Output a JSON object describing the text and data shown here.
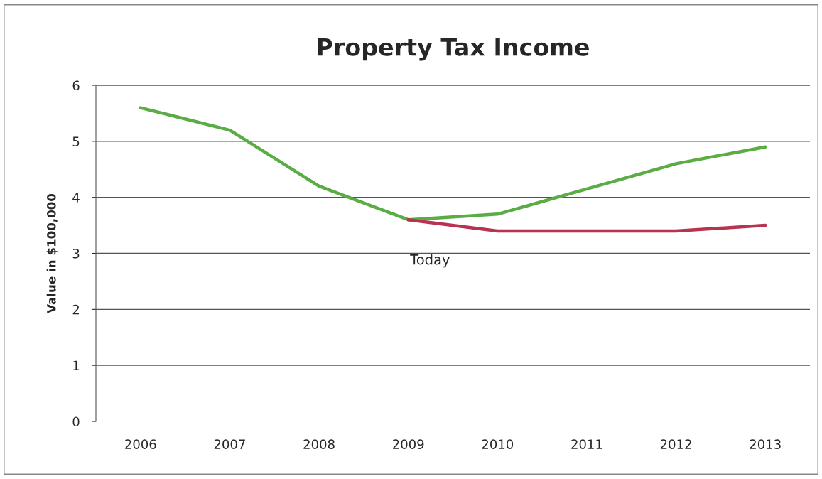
{
  "chart_data": {
    "type": "line",
    "title": "Property Tax Income",
    "ylabel": "Value in $100,000",
    "categories": [
      "2006",
      "2007",
      "2008",
      "2009",
      "2010",
      "2011",
      "2012",
      "2013"
    ],
    "series": [
      {
        "color": "#5aac44",
        "values": [
          5.6,
          5.2,
          4.2,
          3.6,
          3.7,
          4.15,
          4.6,
          4.9
        ]
      },
      {
        "color": "#b8334f",
        "values": [
          null,
          null,
          null,
          3.6,
          3.4,
          3.4,
          3.4,
          3.5
        ]
      }
    ],
    "ylim": [
      0,
      6
    ],
    "yticks": [
      0,
      1,
      2,
      3,
      4,
      5,
      6
    ],
    "grid": "y",
    "legend": false,
    "marker": "none",
    "line_style": "solid",
    "annotations": [
      "Today"
    ]
  }
}
